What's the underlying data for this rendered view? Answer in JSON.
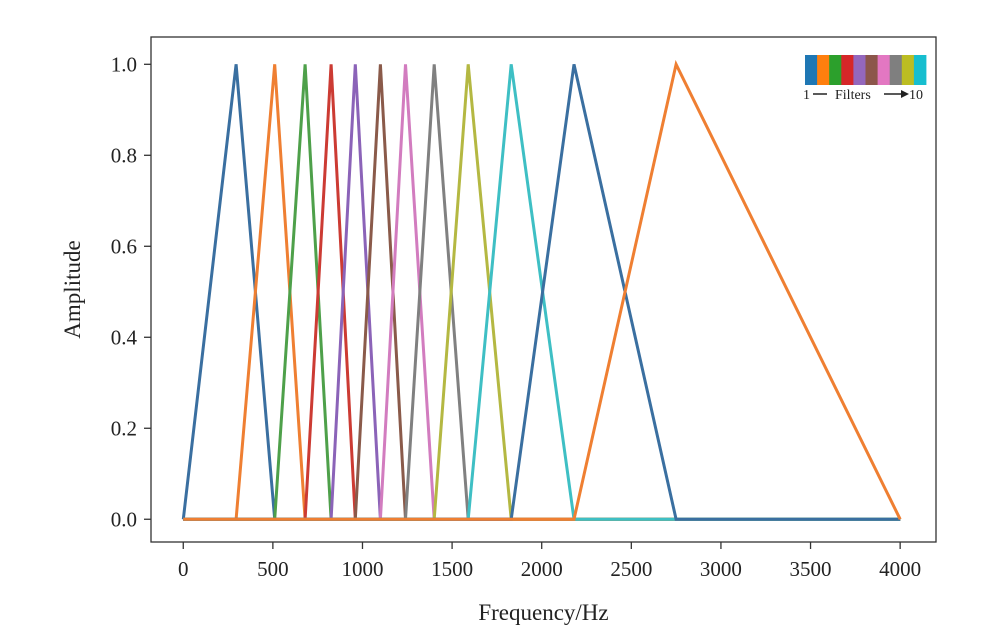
{
  "chart_data": {
    "type": "line",
    "title": "",
    "xlabel": "Frequency/Hz",
    "ylabel": "Amplitude",
    "xlim": [
      -180,
      4200
    ],
    "ylim": [
      -0.05,
      1.06
    ],
    "xticks": [
      0,
      500,
      1000,
      1500,
      2000,
      2500,
      3000,
      3500,
      4000
    ],
    "yticks": [
      0.0,
      0.2,
      0.4,
      0.6,
      0.8,
      1.0
    ],
    "ytick_labels": [
      "0.0",
      "0.2",
      "0.4",
      "0.6",
      "0.8",
      "1.0"
    ],
    "grid": false,
    "legend": {
      "placement": "top-right",
      "start_label": "1",
      "middle_label": "Filters",
      "end_label": "10"
    },
    "series": [
      {
        "color": "#3a6fa0",
        "x": [
          0,
          295,
          510,
          4000
        ],
        "y": [
          0,
          1,
          0,
          0
        ]
      },
      {
        "color": "#ef7f32",
        "x": [
          0,
          295,
          510,
          680,
          4000
        ],
        "y": [
          0,
          0,
          1,
          0,
          0
        ]
      },
      {
        "color": "#4ea04a",
        "x": [
          0,
          510,
          680,
          825,
          4000
        ],
        "y": [
          0,
          0,
          1,
          0,
          0
        ]
      },
      {
        "color": "#cc3b33",
        "x": [
          0,
          680,
          825,
          960,
          4000
        ],
        "y": [
          0,
          0,
          1,
          0,
          0
        ]
      },
      {
        "color": "#8b63b8",
        "x": [
          0,
          825,
          960,
          1100,
          4000
        ],
        "y": [
          0,
          0,
          1,
          0,
          0
        ]
      },
      {
        "color": "#8a5a4a",
        "x": [
          0,
          960,
          1100,
          1240,
          4000
        ],
        "y": [
          0,
          0,
          1,
          0,
          0
        ]
      },
      {
        "color": "#d27cbf",
        "x": [
          0,
          1100,
          1240,
          1400,
          4000
        ],
        "y": [
          0,
          0,
          1,
          0,
          0
        ]
      },
      {
        "color": "#808080",
        "x": [
          0,
          1240,
          1400,
          1590,
          4000
        ],
        "y": [
          0,
          0,
          1,
          0,
          0
        ]
      },
      {
        "color": "#b4b842",
        "x": [
          0,
          1400,
          1590,
          1830,
          4000
        ],
        "y": [
          0,
          0,
          1,
          0,
          0
        ]
      },
      {
        "color": "#3ebfc4",
        "x": [
          0,
          1590,
          1830,
          2180,
          4000
        ],
        "y": [
          0,
          0,
          1,
          0,
          0
        ]
      },
      {
        "color": "#3a6fa0",
        "x": [
          0,
          1830,
          2180,
          2750,
          4000
        ],
        "y": [
          0,
          0,
          1,
          0,
          0
        ]
      },
      {
        "color": "#ef7f32",
        "x": [
          0,
          2180,
          2750,
          4000
        ],
        "y": [
          0,
          0,
          1,
          0
        ]
      }
    ],
    "legend_colors": [
      "#1f77b4",
      "#ff7f0e",
      "#2ca02c",
      "#d62728",
      "#9467bd",
      "#8c564b",
      "#e377c2",
      "#7f7f7f",
      "#bcbd22",
      "#17becf"
    ]
  }
}
